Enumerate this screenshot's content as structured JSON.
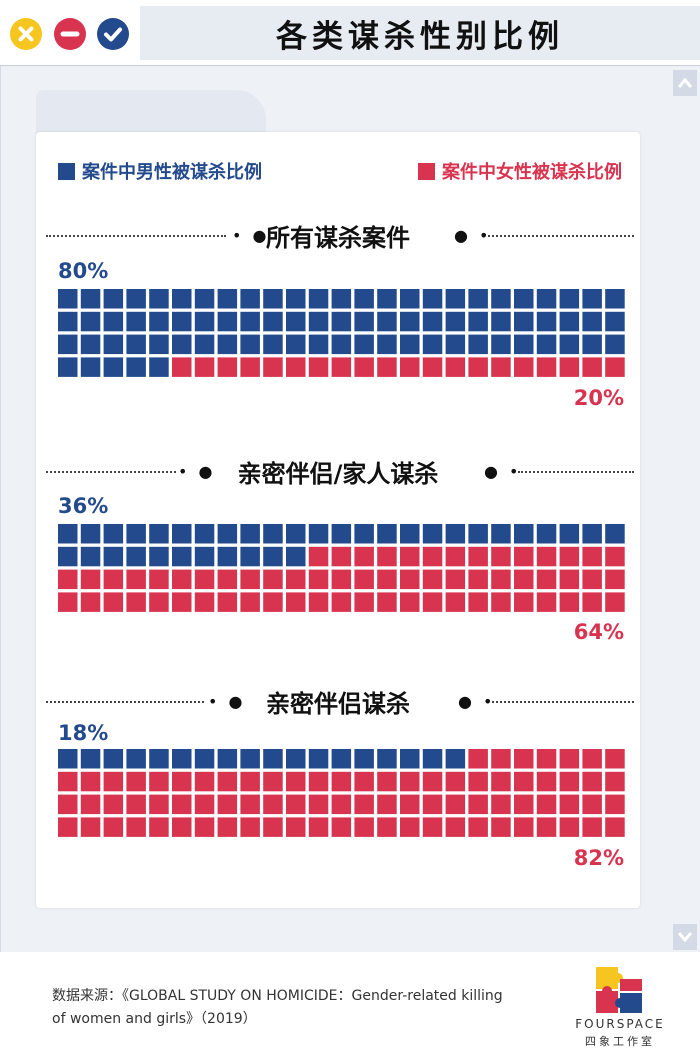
{
  "window": {
    "title": "各类谋杀性别比例",
    "controls": [
      {
        "name": "close",
        "icon": "close-icon",
        "color": "#f6c51f"
      },
      {
        "name": "minimize",
        "icon": "minus-icon",
        "color": "#d8334f"
      },
      {
        "name": "confirm",
        "icon": "check-icon",
        "color": "#234a8c"
      }
    ]
  },
  "legend": {
    "male": {
      "label": "案件中男性被谋杀比例",
      "color": "#234a8c"
    },
    "female": {
      "label": "案件中女性被谋杀比例",
      "color": "#d8334f"
    }
  },
  "chart_data": {
    "type": "waffle",
    "cells_per_chart": 100,
    "columns": 25,
    "rows": 4,
    "series_names": [
      "案件中男性被谋杀比例",
      "案件中女性被谋杀比例"
    ],
    "sections": [
      {
        "title": "所有谋杀案件",
        "male_pct": 80,
        "female_pct": 20,
        "male_label": "80%",
        "female_label": "20%"
      },
      {
        "title": "亲密伴侣/家人谋杀",
        "male_pct": 36,
        "female_pct": 64,
        "male_label": "36%",
        "female_label": "64%"
      },
      {
        "title": "亲密伴侣谋杀",
        "male_pct": 18,
        "female_pct": 82,
        "male_label": "18%",
        "female_label": "82%"
      }
    ]
  },
  "footer": {
    "source_line1": "数据来源：《GLOBAL STUDY ON HOMICIDE：Gender-related killing",
    "source_line2": "of women and girls》（2019）",
    "brand_en": "FOURSPACE",
    "brand_cn": "四象工作室"
  }
}
